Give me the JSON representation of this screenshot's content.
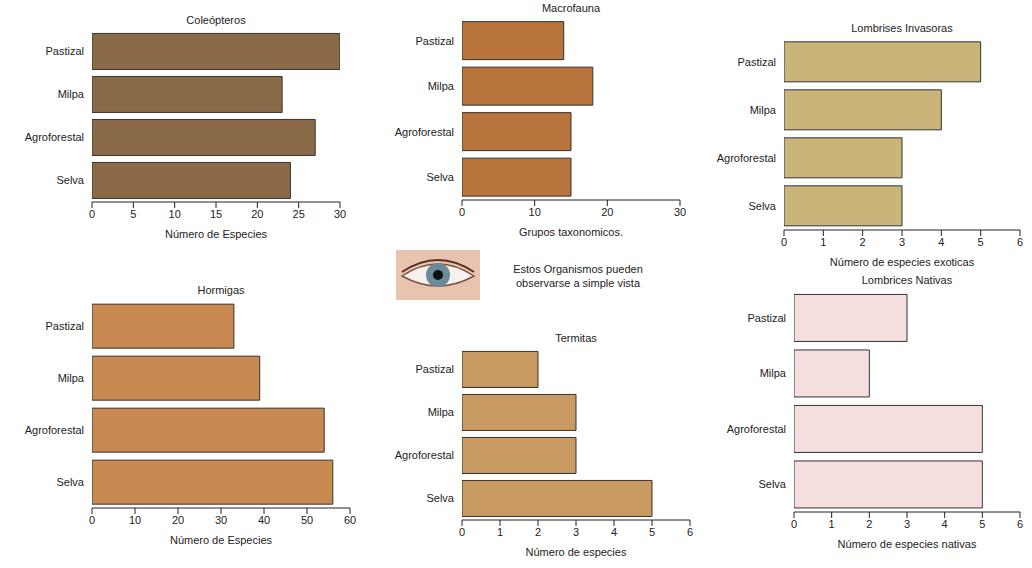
{
  "annotation": "Estos Organismos pueden observarse a simple vista",
  "chart_data": [
    {
      "type": "bar",
      "orientation": "horizontal",
      "title": "Coleópteros",
      "x_label": "Número de Especies",
      "categories": [
        "Pastizal",
        "Milpa",
        "Agroforestal",
        "Selva"
      ],
      "values": [
        30,
        23,
        27,
        24
      ],
      "color": "#8b6a48",
      "xlim": [
        0,
        30
      ],
      "xticks": [
        0,
        5,
        10,
        15,
        20,
        25,
        30
      ],
      "grid": false
    },
    {
      "type": "bar",
      "orientation": "horizontal",
      "title": "Macrofauna",
      "x_label": "Grupos taxonomicos.",
      "categories": [
        "Pastizal",
        "Milpa",
        "Agroforestal",
        "Selva"
      ],
      "values": [
        14,
        18,
        15,
        15
      ],
      "color": "#b8743a",
      "xlim": [
        0,
        30
      ],
      "xticks": [
        0,
        10,
        20,
        30
      ],
      "grid": false
    },
    {
      "type": "bar",
      "orientation": "horizontal",
      "title": "Lombrises Invasoras",
      "x_label": "Número de especies exoticas",
      "categories": [
        "Pastizal",
        "Milpa",
        "Agroforestal",
        "Selva"
      ],
      "values": [
        5,
        4,
        3,
        3
      ],
      "color": "#c9b57a",
      "xlim": [
        0,
        6
      ],
      "xticks": [
        0,
        1,
        2,
        3,
        4,
        5,
        6
      ],
      "grid": false
    },
    {
      "type": "bar",
      "orientation": "horizontal",
      "title": "Hormigas",
      "x_label": "Número de Especies",
      "categories": [
        "Pastizal",
        "Milpa",
        "Agroforestal",
        "Selva"
      ],
      "values": [
        33,
        39,
        54,
        56
      ],
      "color": "#c98a52",
      "xlim": [
        0,
        60
      ],
      "xticks": [
        0,
        10,
        20,
        30,
        40,
        50,
        60
      ],
      "grid": false
    },
    {
      "type": "bar",
      "orientation": "horizontal",
      "title": "Termitas",
      "x_label": "Número de especies",
      "categories": [
        "Pastizal",
        "Milpa",
        "Agroforestal",
        "Selva"
      ],
      "values": [
        2,
        3,
        3,
        5
      ],
      "color": "#c99a62",
      "xlim": [
        0,
        6
      ],
      "xticks": [
        0,
        1,
        2,
        3,
        4,
        5,
        6
      ],
      "grid": false
    },
    {
      "type": "bar",
      "orientation": "horizontal",
      "title": "Lombrices Nativas",
      "x_label": "Número de especies nativas",
      "categories": [
        "Pastizal",
        "Milpa",
        "Agroforestal",
        "Selva"
      ],
      "values": [
        3,
        2,
        5,
        5
      ],
      "color": "#f4dede",
      "xlim": [
        0,
        6
      ],
      "xticks": [
        0,
        1,
        2,
        3,
        4,
        5,
        6
      ],
      "grid": false
    }
  ]
}
